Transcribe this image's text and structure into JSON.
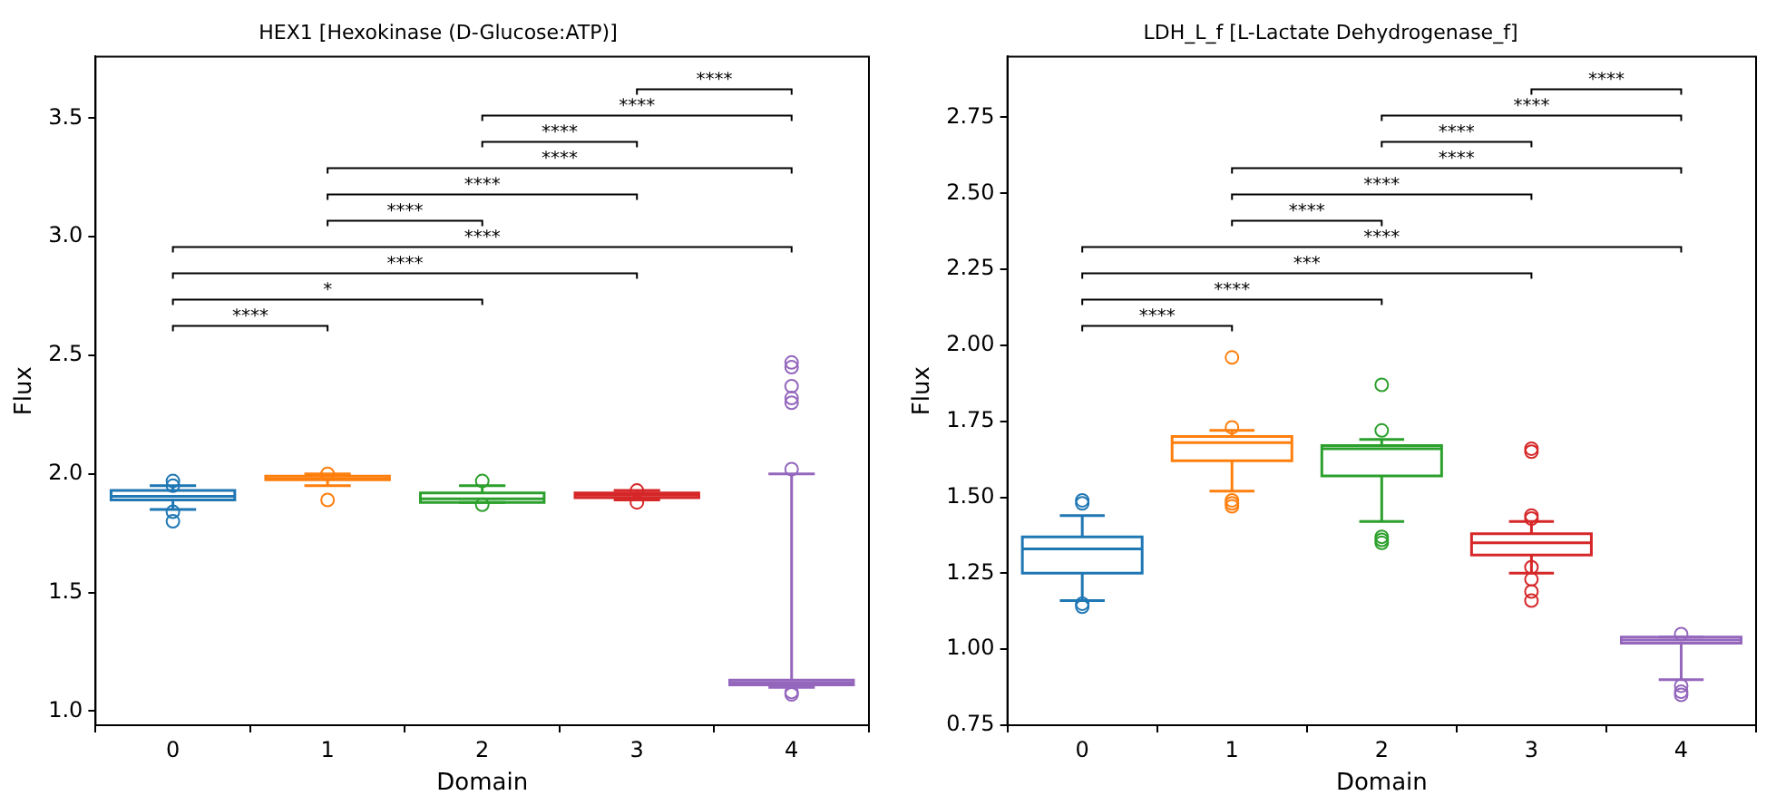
{
  "chart_data": [
    {
      "type": "box",
      "title": "HEX1 [Hexokinase (D-Glucose:ATP)]",
      "xlabel": "Domain",
      "ylabel": "Flux",
      "categories": [
        "0",
        "1",
        "2",
        "3",
        "4"
      ],
      "colors": [
        "#1f77b4",
        "#ff7f0e",
        "#2ca02c",
        "#d62728",
        "#9467bd"
      ],
      "boxes": [
        {
          "low": 1.85,
          "q1": 1.89,
          "median": 1.905,
          "q3": 1.93,
          "high": 1.95,
          "outliers": [
            1.97,
            1.95,
            1.84,
            1.8
          ]
        },
        {
          "low": 1.95,
          "q1": 1.975,
          "median": 1.98,
          "q3": 1.99,
          "high": 2.0,
          "outliers": [
            2.0,
            1.89
          ]
        },
        {
          "low": 1.88,
          "q1": 1.88,
          "median": 1.895,
          "q3": 1.92,
          "high": 1.95,
          "outliers": [
            1.97,
            1.87
          ]
        },
        {
          "low": 1.89,
          "q1": 1.9,
          "median": 1.91,
          "q3": 1.92,
          "high": 1.93,
          "outliers": [
            1.93,
            1.88
          ]
        },
        {
          "low": 1.1,
          "q1": 1.11,
          "median": 1.12,
          "q3": 1.13,
          "high": 2.0,
          "outliers": [
            2.02,
            2.3,
            2.32,
            2.37,
            2.45,
            2.47,
            1.08,
            1.07
          ]
        }
      ],
      "ylim": [
        0.94,
        3.76
      ],
      "yticks": [
        {
          "value": 1,
          "label": "1.0"
        },
        1.5,
        {
          "value": 2,
          "label": "2.0"
        },
        2.5,
        {
          "value": 3,
          "label": "3.0"
        },
        3.5
      ],
      "grid": false,
      "legend": false,
      "annotations": [
        "****",
        "*",
        "****",
        "****",
        "****",
        "****",
        "****",
        "****",
        "****",
        "****"
      ]
    },
    {
      "type": "box",
      "title": "LDH_L_f [L-Lactate Dehydrogenase_f]",
      "xlabel": "Domain",
      "ylabel": "Flux",
      "categories": [
        "0",
        "1",
        "2",
        "3",
        "4"
      ],
      "colors": [
        "#1f77b4",
        "#ff7f0e",
        "#2ca02c",
        "#d62728",
        "#9467bd"
      ],
      "boxes": [
        {
          "low": 1.16,
          "q1": 1.25,
          "median": 1.33,
          "q3": 1.37,
          "high": 1.44,
          "outliers": [
            1.49,
            1.48,
            1.15,
            1.14
          ]
        },
        {
          "low": 1.52,
          "q1": 1.62,
          "median": 1.68,
          "q3": 1.7,
          "high": 1.72,
          "outliers": [
            1.96,
            1.73,
            1.49,
            1.48,
            1.47
          ]
        },
        {
          "low": 1.42,
          "q1": 1.57,
          "median": 1.66,
          "q3": 1.67,
          "high": 1.69,
          "outliers": [
            1.87,
            1.72,
            1.37,
            1.36,
            1.35
          ]
        },
        {
          "low": 1.25,
          "q1": 1.31,
          "median": 1.35,
          "q3": 1.38,
          "high": 1.42,
          "outliers": [
            1.66,
            1.65,
            1.44,
            1.43,
            1.27,
            1.23,
            1.19,
            1.16
          ]
        },
        {
          "low": 0.9,
          "q1": 1.02,
          "median": 1.03,
          "q3": 1.04,
          "high": 1.04,
          "outliers": [
            1.05,
            0.88,
            0.86,
            0.85
          ]
        }
      ],
      "ylim": [
        0.75,
        2.95
      ],
      "yticks": [
        0.75,
        {
          "value": 1,
          "label": "1.00"
        },
        1.25,
        {
          "value": 1.5,
          "label": "1.50"
        },
        1.75,
        {
          "value": 2,
          "label": "2.00"
        },
        2.25,
        {
          "value": 2.5,
          "label": "2.50"
        },
        2.75
      ],
      "grid": false,
      "legend": false,
      "annotations": [
        "****",
        "****",
        "***",
        "****",
        "****",
        "****",
        "****",
        "****",
        "****",
        "****"
      ]
    }
  ]
}
